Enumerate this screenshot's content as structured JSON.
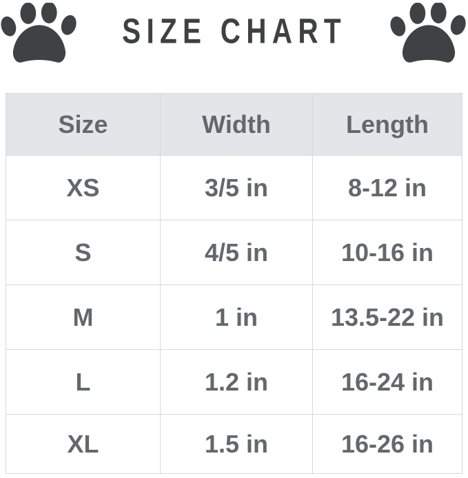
{
  "title": "SIZE CHART",
  "colors": {
    "background": "#ffffff",
    "header_bg": "#e3e6e8",
    "text": "#62686d",
    "title": "#3d4144",
    "paw": "#3f4245",
    "border": "#d6d9da"
  },
  "icons": {
    "left": "paw-icon",
    "right": "paw-icon"
  },
  "table": {
    "columns": [
      "Size",
      "Width",
      "Length"
    ],
    "rows": [
      {
        "size": "XS",
        "width": "3/5 in",
        "length": "8-12 in"
      },
      {
        "size": "S",
        "width": "4/5 in",
        "length": "10-16 in"
      },
      {
        "size": "M",
        "width": "1 in",
        "length": "13.5-22 in"
      },
      {
        "size": "L",
        "width": "1.2 in",
        "length": "16-24 in"
      },
      {
        "size": "XL",
        "width": "1.5 in",
        "length": "16-26 in"
      }
    ]
  },
  "chart_data": {
    "type": "table",
    "title": "SIZE CHART",
    "columns": [
      "Size",
      "Width",
      "Length"
    ],
    "rows": [
      [
        "XS",
        "3/5 in",
        "8-12 in"
      ],
      [
        "S",
        "4/5 in",
        "10-16 in"
      ],
      [
        "M",
        "1 in",
        "13.5-22 in"
      ],
      [
        "L",
        "1.2 in",
        "16-24 in"
      ],
      [
        "XL",
        "1.5 in",
        "16-26 in"
      ]
    ]
  }
}
